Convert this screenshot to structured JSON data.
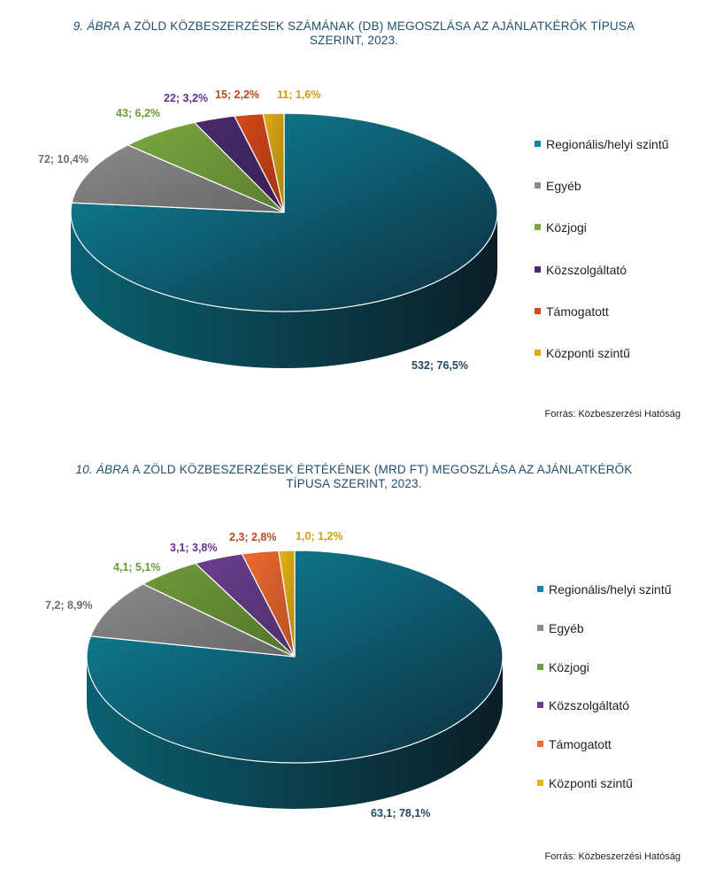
{
  "colors": {
    "regional": "#0e8aa0",
    "regional_dark": "#0d2e3e",
    "other": "#8a8a8a",
    "public_law": "#7aa840",
    "utility": "#4a2a6e",
    "supported": "#e0521e",
    "central": "#e8b517",
    "title": "#1f4e6e"
  },
  "chart_data": [
    {
      "type": "pie",
      "title_number": "9. ábra",
      "title": "a zöld közbeszerzések számának (db) megoszlása az ajánlatkérők típusa szerint, 2023.",
      "legend_position": "right",
      "unit": "db",
      "slices": [
        {
          "name": "Regionális/helyi szintű",
          "value": 532,
          "percent": 76.5,
          "label": "532; 76,5%",
          "color": "#0e8aa0",
          "label_color": "#1e4a68"
        },
        {
          "name": "Egyéb",
          "value": 72,
          "percent": 10.4,
          "label": "72; 10,4%",
          "color": "#8a8a8a",
          "label_color": "#6e6e6e"
        },
        {
          "name": "Közjogi",
          "value": 43,
          "percent": 6.2,
          "label": "43; 6,2%",
          "color": "#7aa840",
          "label_color": "#6a9a35"
        },
        {
          "name": "Közszolgáltató",
          "value": 22,
          "percent": 3.2,
          "label": "22; 3,2%",
          "color": "#4a2a6e",
          "label_color": "#6a2e90"
        },
        {
          "name": "Támogatott",
          "value": 15,
          "percent": 2.2,
          "label": "15; 2,2%",
          "color": "#d4481a",
          "label_color": "#c0461c"
        },
        {
          "name": "Központi szintű",
          "value": 11,
          "percent": 1.6,
          "label": "11; 1,6%",
          "color": "#e0ac14",
          "label_color": "#c9a010"
        }
      ],
      "source": "Forrás: Közbeszerzési Hatóság"
    },
    {
      "type": "pie",
      "title_number": "10. ábra",
      "title": "a zöld közbeszerzések értékének (mrd ft) megoszlása az ajánlatkérők típusa szerint, 2023.",
      "legend_position": "right",
      "unit": "mrd Ft",
      "slices": [
        {
          "name": "Regionális/helyi szintű",
          "value": 63.1,
          "percent": 78.1,
          "label": "63,1; 78,1%",
          "color": "#0e8aa0",
          "label_color": "#1e4a68"
        },
        {
          "name": "Egyéb",
          "value": 7.2,
          "percent": 8.9,
          "label": "7,2; 8,9%",
          "color": "#8a8a8a",
          "label_color": "#6e6e6e"
        },
        {
          "name": "Közjogi",
          "value": 4.1,
          "percent": 5.1,
          "label": "4,1; 5,1%",
          "color": "#6e9a3a",
          "label_color": "#6a9a35"
        },
        {
          "name": "Közszolgáltató",
          "value": 3.1,
          "percent": 3.8,
          "label": "3,1; 3,8%",
          "color": "#6a3e8e",
          "label_color": "#6a2e90"
        },
        {
          "name": "Támogatott",
          "value": 2.3,
          "percent": 2.8,
          "label": "2,3; 2,8%",
          "color": "#ee6a30",
          "label_color": "#c0461c"
        },
        {
          "name": "Központi szintű",
          "value": 1.0,
          "percent": 1.2,
          "label": "1,0; 1,2%",
          "color": "#e8b517",
          "label_color": "#c9a010"
        }
      ],
      "source": "Forrás: Közbeszerzési Hatóság"
    }
  ]
}
